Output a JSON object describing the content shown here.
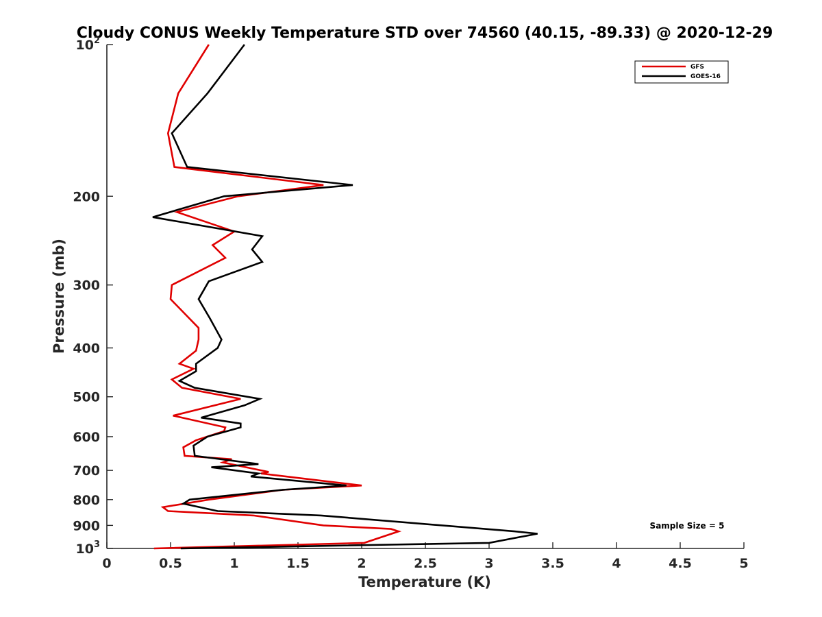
{
  "chart_data": {
    "type": "line",
    "title": "Cloudy CONUS Weekly Temperature STD over 74560 (40.15, -89.33) @ 2020-12-29",
    "xlabel": "Temperature (K)",
    "ylabel": "Pressure (mb)",
    "xlim": [
      0,
      5
    ],
    "ylim": [
      1000,
      100
    ],
    "yscale": "log",
    "y_reversed": true,
    "grid": false,
    "legend_location": "top-right",
    "x_ticks": [
      {
        "value": 0,
        "label": "0"
      },
      {
        "value": 0.5,
        "label": "0.5"
      },
      {
        "value": 1,
        "label": "1"
      },
      {
        "value": 1.5,
        "label": "1.5"
      },
      {
        "value": 2,
        "label": "2"
      },
      {
        "value": 2.5,
        "label": "2.5"
      },
      {
        "value": 3,
        "label": "3"
      },
      {
        "value": 3.5,
        "label": "3.5"
      },
      {
        "value": 4,
        "label": "4"
      },
      {
        "value": 4.5,
        "label": "4.5"
      },
      {
        "value": 5,
        "label": "5"
      }
    ],
    "y_ticks": [
      {
        "value": 100,
        "label": "10",
        "sup": "2"
      },
      {
        "value": 200,
        "label": "200"
      },
      {
        "value": 300,
        "label": "300"
      },
      {
        "value": 400,
        "label": "400"
      },
      {
        "value": 500,
        "label": "500"
      },
      {
        "value": 600,
        "label": "600"
      },
      {
        "value": 700,
        "label": "700"
      },
      {
        "value": 800,
        "label": "800"
      },
      {
        "value": 900,
        "label": "900"
      },
      {
        "value": 1000,
        "label": "10",
        "sup": "3"
      }
    ],
    "annotation": "Sample Size = 5",
    "series": [
      {
        "name": "GFS",
        "color": "#e00000",
        "points": [
          [
            0.8,
            100
          ],
          [
            0.56,
            125
          ],
          [
            0.48,
            150
          ],
          [
            0.53,
            175
          ],
          [
            1.7,
            190
          ],
          [
            1.03,
            200
          ],
          [
            0.55,
            215
          ],
          [
            1.0,
            235
          ],
          [
            0.83,
            250
          ],
          [
            0.93,
            265
          ],
          [
            0.51,
            300
          ],
          [
            0.5,
            320
          ],
          [
            0.72,
            365
          ],
          [
            0.72,
            385
          ],
          [
            0.7,
            405
          ],
          [
            0.57,
            430
          ],
          [
            0.68,
            440
          ],
          [
            0.51,
            462
          ],
          [
            0.59,
            480
          ],
          [
            1.05,
            505
          ],
          [
            0.52,
            545
          ],
          [
            0.93,
            575
          ],
          [
            0.92,
            585
          ],
          [
            0.7,
            610
          ],
          [
            0.6,
            630
          ],
          [
            0.61,
            655
          ],
          [
            0.98,
            665
          ],
          [
            0.91,
            675
          ],
          [
            1.27,
            705
          ],
          [
            1.21,
            710
          ],
          [
            2.0,
            750
          ],
          [
            1.38,
            765
          ],
          [
            0.8,
            800
          ],
          [
            0.44,
            828
          ],
          [
            0.48,
            843
          ],
          [
            1.15,
            860
          ],
          [
            1.7,
            900
          ],
          [
            2.23,
            915
          ],
          [
            2.29,
            925
          ],
          [
            2.02,
            975
          ],
          [
            0.37,
            1000
          ]
        ]
      },
      {
        "name": "GOES-16",
        "color": "#000000",
        "points": [
          [
            1.08,
            100
          ],
          [
            0.79,
            125
          ],
          [
            0.51,
            150
          ],
          [
            0.63,
            175
          ],
          [
            1.93,
            190
          ],
          [
            0.92,
            200
          ],
          [
            0.36,
            220
          ],
          [
            1.22,
            240
          ],
          [
            1.14,
            255
          ],
          [
            1.22,
            270
          ],
          [
            0.8,
            295
          ],
          [
            0.72,
            320
          ],
          [
            0.81,
            350
          ],
          [
            0.9,
            385
          ],
          [
            0.87,
            400
          ],
          [
            0.7,
            430
          ],
          [
            0.7,
            445
          ],
          [
            0.57,
            465
          ],
          [
            0.69,
            480
          ],
          [
            1.2,
            505
          ],
          [
            1.08,
            520
          ],
          [
            0.74,
            550
          ],
          [
            1.05,
            565
          ],
          [
            1.05,
            575
          ],
          [
            0.79,
            600
          ],
          [
            0.68,
            625
          ],
          [
            0.69,
            655
          ],
          [
            1.19,
            680
          ],
          [
            0.82,
            690
          ],
          [
            1.19,
            710
          ],
          [
            1.13,
            720
          ],
          [
            1.88,
            750
          ],
          [
            1.38,
            765
          ],
          [
            0.65,
            800
          ],
          [
            0.6,
            815
          ],
          [
            0.87,
            843
          ],
          [
            1.68,
            860
          ],
          [
            3.2,
            925
          ],
          [
            3.38,
            935
          ],
          [
            3.0,
            975
          ],
          [
            0.58,
            1000
          ]
        ]
      }
    ]
  }
}
